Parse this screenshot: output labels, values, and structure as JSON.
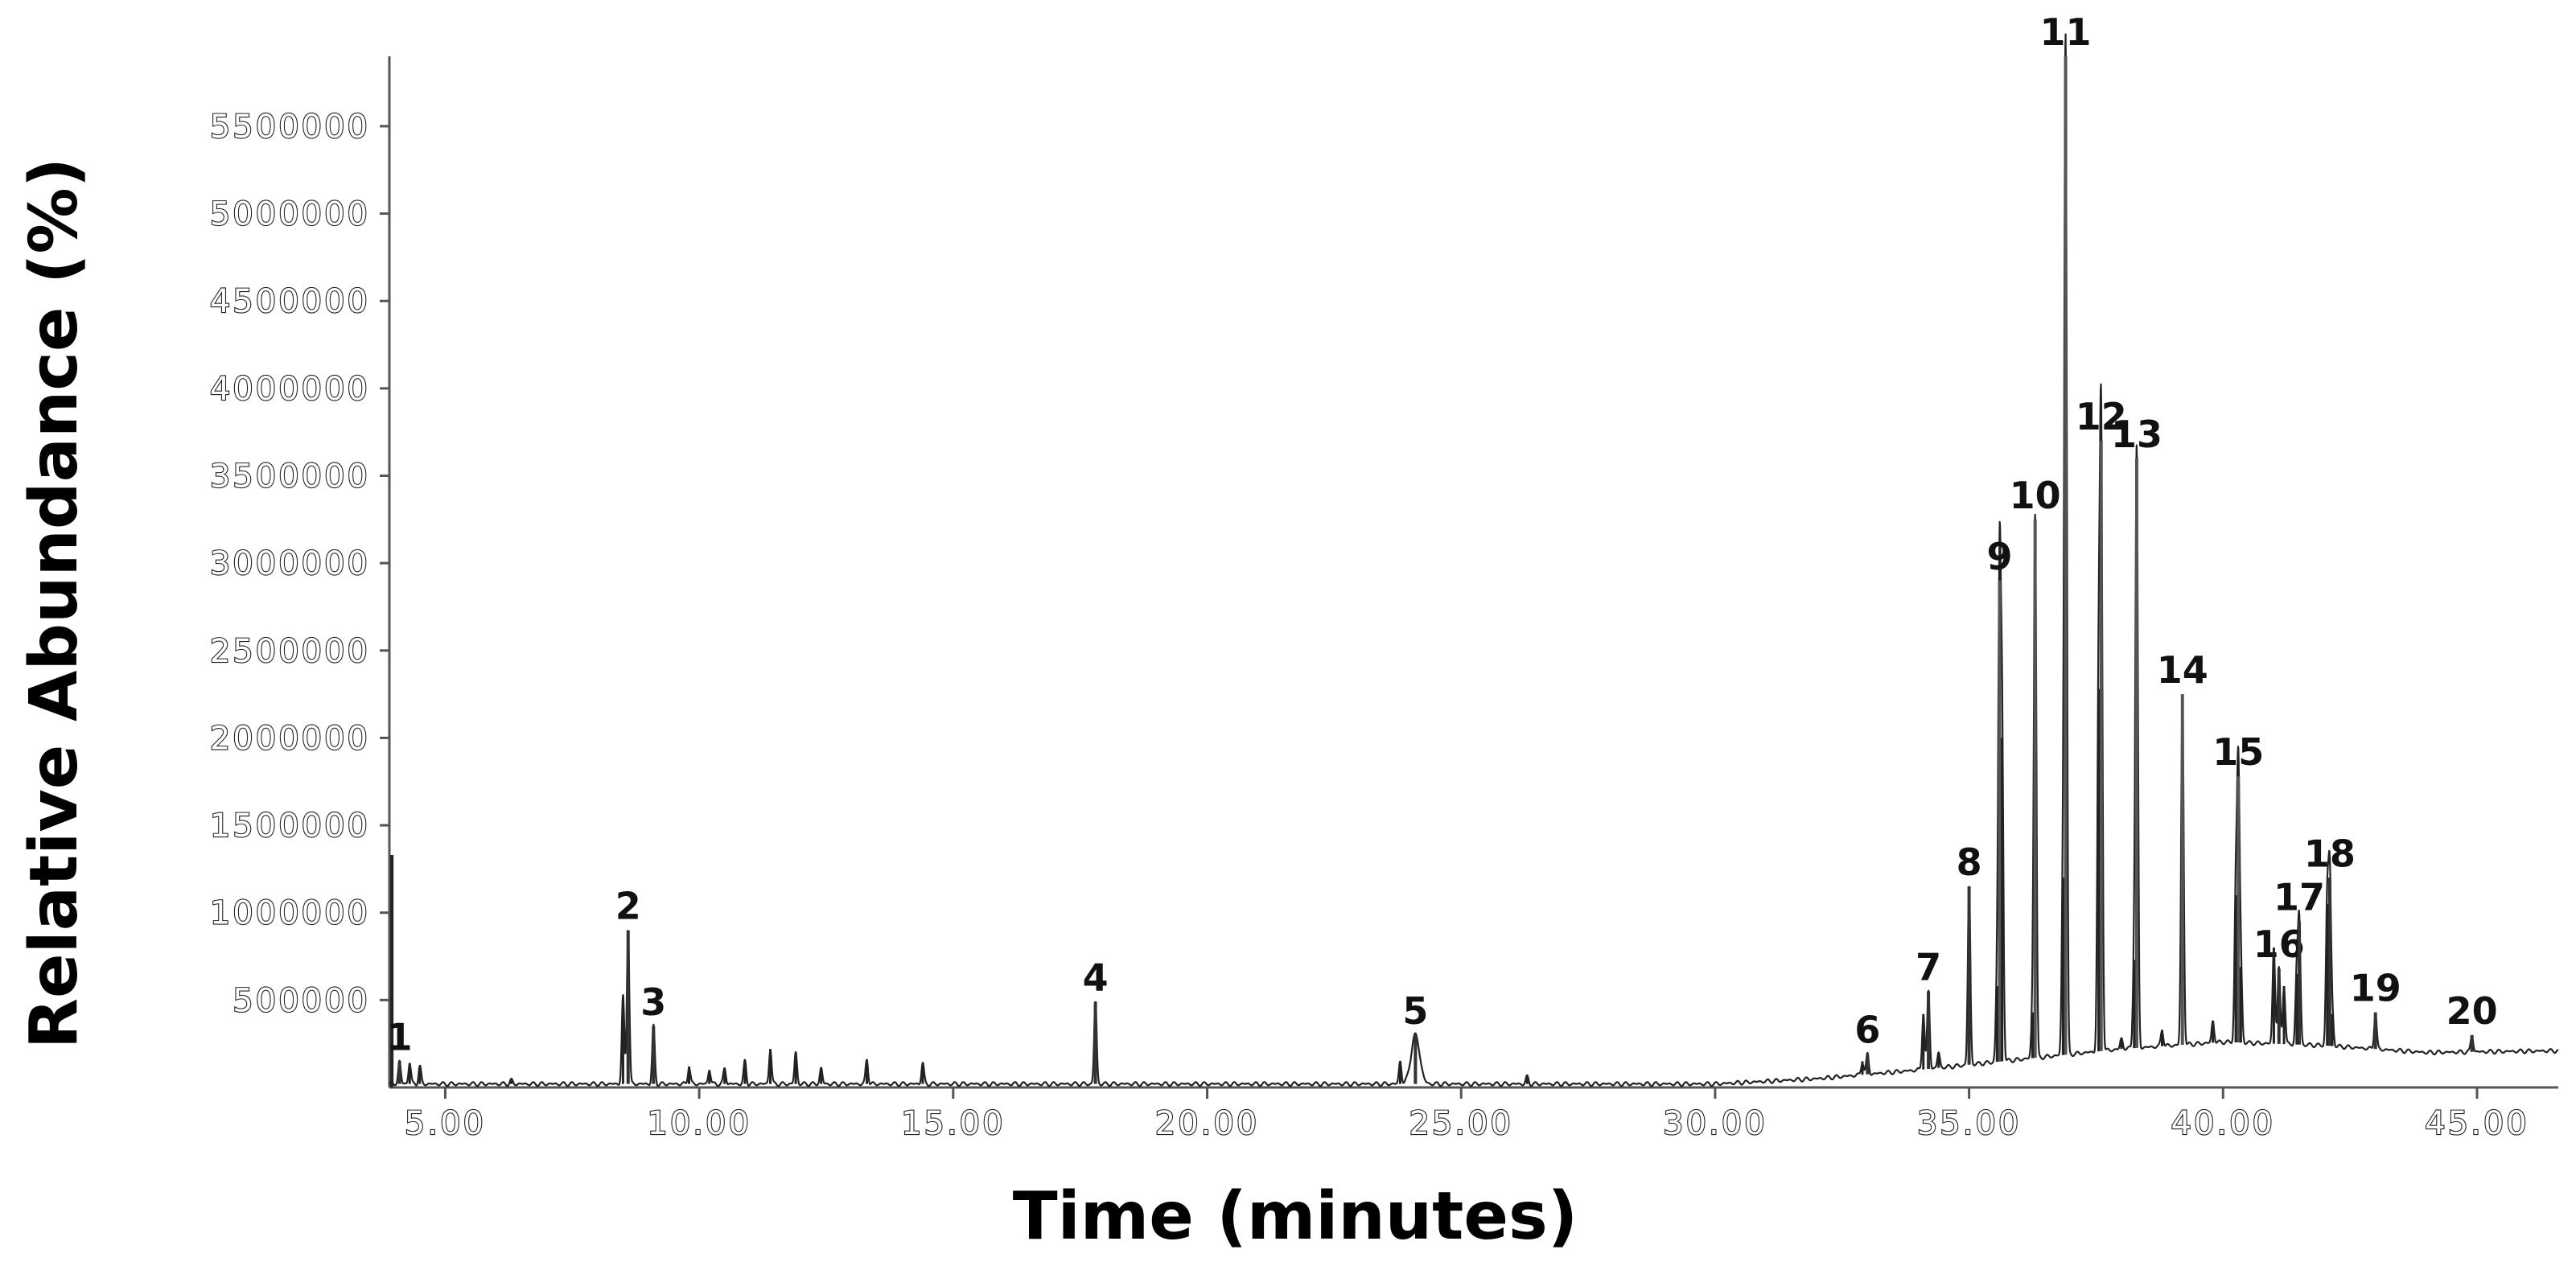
{
  "chart_data": {
    "type": "line",
    "title": "",
    "xlabel": "Time (minutes)",
    "ylabel": "Relative Abundance (%)",
    "xlim": [
      3.9,
      46.6
    ],
    "ylim": [
      0,
      5900000
    ],
    "x_ticks": [
      5,
      10,
      15,
      20,
      25,
      30,
      35,
      40,
      45
    ],
    "x_tick_labels": [
      "5.00",
      "10.00",
      "15.00",
      "20.00",
      "25.00",
      "30.00",
      "35.00",
      "40.00",
      "45.00"
    ],
    "y_ticks": [
      500000,
      1000000,
      1500000,
      2000000,
      2500000,
      3000000,
      3500000,
      4000000,
      4500000,
      5000000,
      5500000
    ],
    "y_tick_labels": [
      "500000",
      "1000000",
      "1500000",
      "2000000",
      "2500000",
      "3000000",
      "3500000",
      "4000000",
      "4500000",
      "5000000",
      "5500000"
    ],
    "grid": false,
    "legend": "none",
    "peaks": [
      {
        "label": "1",
        "x": 4.1,
        "y": 150000
      },
      {
        "label": "2",
        "x": 8.6,
        "y": 900000
      },
      {
        "label": "3",
        "x": 9.1,
        "y": 350000
      },
      {
        "label": "4",
        "x": 17.8,
        "y": 490000
      },
      {
        "label": "5",
        "x": 24.1,
        "y": 300000
      },
      {
        "label": "6",
        "x": 33.0,
        "y": 190000
      },
      {
        "label": "7",
        "x": 34.2,
        "y": 550000
      },
      {
        "label": "8",
        "x": 35.0,
        "y": 1150000
      },
      {
        "label": "9",
        "x": 35.6,
        "y": 2900000
      },
      {
        "label": "10",
        "x": 36.3,
        "y": 3250000
      },
      {
        "label": "11",
        "x": 36.9,
        "y": 5900000
      },
      {
        "label": "12",
        "x": 37.6,
        "y": 3700000
      },
      {
        "label": "13",
        "x": 38.3,
        "y": 3600000
      },
      {
        "label": "14",
        "x": 39.2,
        "y": 2250000
      },
      {
        "label": "15",
        "x": 40.3,
        "y": 1780000
      },
      {
        "label": "16",
        "x": 41.1,
        "y": 680000
      },
      {
        "label": "17",
        "x": 41.5,
        "y": 950000
      },
      {
        "label": "18",
        "x": 42.1,
        "y": 1200000
      },
      {
        "label": "19",
        "x": 43.0,
        "y": 430000
      },
      {
        "label": "20",
        "x": 44.9,
        "y": 300000
      }
    ],
    "minor_peaks": [
      {
        "x": 4.3,
        "y": 140000
      },
      {
        "x": 4.5,
        "y": 120000
      },
      {
        "x": 6.3,
        "y": 40000
      },
      {
        "x": 8.5,
        "y": 520000
      },
      {
        "x": 9.8,
        "y": 120000
      },
      {
        "x": 10.2,
        "y": 100000
      },
      {
        "x": 10.5,
        "y": 110000
      },
      {
        "x": 10.9,
        "y": 150000
      },
      {
        "x": 11.4,
        "y": 220000
      },
      {
        "x": 11.9,
        "y": 200000
      },
      {
        "x": 12.4,
        "y": 110000
      },
      {
        "x": 13.3,
        "y": 160000
      },
      {
        "x": 14.4,
        "y": 140000
      },
      {
        "x": 23.8,
        "y": 150000
      },
      {
        "x": 26.3,
        "y": 60000
      },
      {
        "x": 32.9,
        "y": 150000
      },
      {
        "x": 34.1,
        "y": 420000
      },
      {
        "x": 34.4,
        "y": 200000
      },
      {
        "x": 35.55,
        "y": 580000
      },
      {
        "x": 35.65,
        "y": 2000000
      },
      {
        "x": 36.25,
        "y": 430000
      },
      {
        "x": 36.85,
        "y": 1200000
      },
      {
        "x": 37.55,
        "y": 2280000
      },
      {
        "x": 38.0,
        "y": 280000
      },
      {
        "x": 38.25,
        "y": 730000
      },
      {
        "x": 38.8,
        "y": 330000
      },
      {
        "x": 39.8,
        "y": 380000
      },
      {
        "x": 40.25,
        "y": 1100000
      },
      {
        "x": 40.35,
        "y": 690000
      },
      {
        "x": 41.0,
        "y": 800000
      },
      {
        "x": 41.2,
        "y": 580000
      },
      {
        "x": 41.45,
        "y": 650000
      },
      {
        "x": 42.05,
        "y": 1050000
      },
      {
        "x": 42.15,
        "y": 420000
      }
    ],
    "baseline": [
      {
        "x": 3.9,
        "y": 20000
      },
      {
        "x": 30.0,
        "y": 20000
      },
      {
        "x": 32.0,
        "y": 50000
      },
      {
        "x": 34.0,
        "y": 100000
      },
      {
        "x": 36.0,
        "y": 160000
      },
      {
        "x": 38.0,
        "y": 220000
      },
      {
        "x": 40.0,
        "y": 260000
      },
      {
        "x": 42.0,
        "y": 240000
      },
      {
        "x": 44.0,
        "y": 200000
      },
      {
        "x": 46.6,
        "y": 210000
      }
    ]
  }
}
